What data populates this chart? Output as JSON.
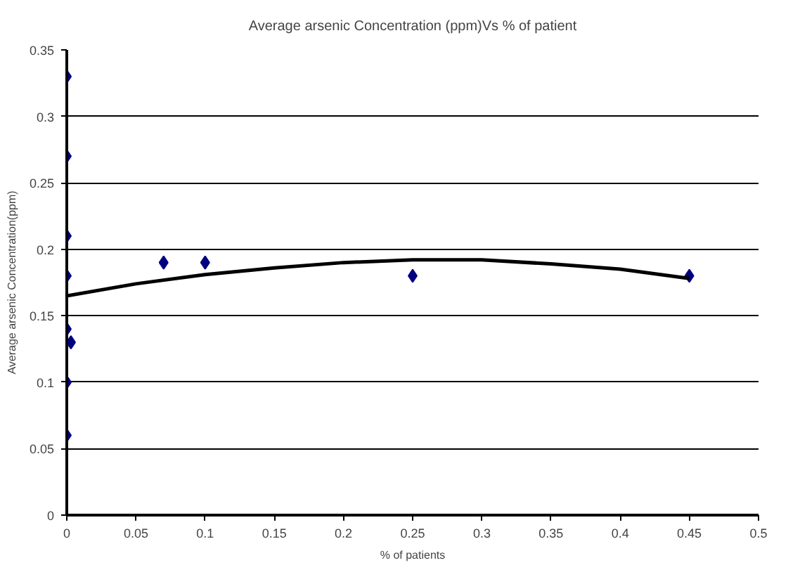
{
  "chart_data": {
    "type": "scatter",
    "title": "Average arsenic Concentration (ppm)Vs % of patient",
    "xlabel": "% of patients",
    "ylabel": "Average arsenic Concentration(ppm)",
    "xlim": [
      0,
      0.5
    ],
    "xticks": [
      0,
      0.05,
      0.1,
      0.15,
      0.2,
      0.25,
      0.3,
      0.35,
      0.4,
      0.45,
      0.5
    ],
    "ylim": [
      0,
      0.35
    ],
    "yticks": [
      0,
      0.05,
      0.1,
      0.15,
      0.2,
      0.25,
      0.3,
      0.35
    ],
    "grid": "y",
    "series": [
      {
        "color": "#000080",
        "marker": "diamond",
        "x": [
          0,
          0,
          0,
          0,
          0,
          0,
          0,
          0.003,
          0.07,
          0.1,
          0.25,
          0.45
        ],
        "values": [
          0.33,
          0.27,
          0.21,
          0.18,
          0.14,
          0.1,
          0.06,
          0.13,
          0.19,
          0.19,
          0.18,
          0.18
        ]
      },
      {
        "type": "line",
        "color": "#000000",
        "marker": "none",
        "x": [
          0,
          0.05,
          0.1,
          0.15,
          0.2,
          0.25,
          0.3,
          0.35,
          0.4,
          0.45
        ],
        "values": [
          0.165,
          0.174,
          0.181,
          0.186,
          0.19,
          0.192,
          0.192,
          0.189,
          0.185,
          0.178
        ]
      }
    ]
  }
}
